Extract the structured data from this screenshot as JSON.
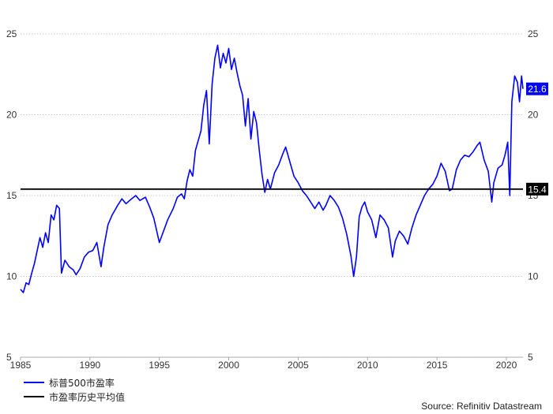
{
  "chart_data": {
    "type": "line",
    "xlim": [
      1985,
      2021.2
    ],
    "ylim": [
      5,
      25
    ],
    "x_ticks": [
      "1985",
      "1990",
      "1995",
      "2000",
      "2005",
      "2010",
      "2015",
      "2020"
    ],
    "y_ticks": [
      "5",
      "10",
      "15",
      "20",
      "25"
    ],
    "grid": true,
    "legend_position": "bottom-left",
    "series": [
      {
        "name": "标普500市盈率",
        "color": "#0000ff",
        "end_label": "21.6",
        "points": [
          [
            1985.0,
            9.2
          ],
          [
            1985.2,
            9.0
          ],
          [
            1985.4,
            9.6
          ],
          [
            1985.6,
            9.5
          ],
          [
            1985.8,
            10.2
          ],
          [
            1986.0,
            10.8
          ],
          [
            1986.2,
            11.6
          ],
          [
            1986.4,
            12.4
          ],
          [
            1986.6,
            11.8
          ],
          [
            1986.8,
            12.7
          ],
          [
            1987.0,
            12.1
          ],
          [
            1987.2,
            13.8
          ],
          [
            1987.4,
            13.5
          ],
          [
            1987.6,
            14.4
          ],
          [
            1987.8,
            14.2
          ],
          [
            1987.95,
            10.2
          ],
          [
            1988.2,
            11.0
          ],
          [
            1988.5,
            10.6
          ],
          [
            1988.8,
            10.4
          ],
          [
            1989.0,
            10.1
          ],
          [
            1989.3,
            10.5
          ],
          [
            1989.6,
            11.2
          ],
          [
            1989.9,
            11.5
          ],
          [
            1990.2,
            11.6
          ],
          [
            1990.5,
            12.1
          ],
          [
            1990.8,
            10.6
          ],
          [
            1991.0,
            11.8
          ],
          [
            1991.3,
            13.2
          ],
          [
            1991.6,
            13.8
          ],
          [
            1992.0,
            14.4
          ],
          [
            1992.3,
            14.8
          ],
          [
            1992.6,
            14.5
          ],
          [
            1993.0,
            14.8
          ],
          [
            1993.3,
            15.0
          ],
          [
            1993.6,
            14.7
          ],
          [
            1994.0,
            14.9
          ],
          [
            1994.3,
            14.3
          ],
          [
            1994.6,
            13.6
          ],
          [
            1995.0,
            12.1
          ],
          [
            1995.3,
            12.8
          ],
          [
            1995.6,
            13.5
          ],
          [
            1996.0,
            14.2
          ],
          [
            1996.3,
            14.9
          ],
          [
            1996.6,
            15.1
          ],
          [
            1996.8,
            14.8
          ],
          [
            1997.0,
            15.9
          ],
          [
            1997.2,
            16.6
          ],
          [
            1997.4,
            16.2
          ],
          [
            1997.6,
            17.8
          ],
          [
            1997.8,
            18.4
          ],
          [
            1998.0,
            19.0
          ],
          [
            1998.2,
            20.6
          ],
          [
            1998.4,
            21.5
          ],
          [
            1998.6,
            18.2
          ],
          [
            1998.8,
            21.9
          ],
          [
            1999.0,
            23.5
          ],
          [
            1999.2,
            24.3
          ],
          [
            1999.4,
            22.9
          ],
          [
            1999.6,
            23.8
          ],
          [
            1999.8,
            23.2
          ],
          [
            2000.0,
            24.1
          ],
          [
            2000.2,
            22.8
          ],
          [
            2000.4,
            23.5
          ],
          [
            2000.6,
            22.6
          ],
          [
            2000.8,
            21.8
          ],
          [
            2001.0,
            21.2
          ],
          [
            2001.2,
            19.3
          ],
          [
            2001.4,
            21.0
          ],
          [
            2001.6,
            18.5
          ],
          [
            2001.8,
            20.2
          ],
          [
            2002.0,
            19.5
          ],
          [
            2002.2,
            17.8
          ],
          [
            2002.4,
            16.3
          ],
          [
            2002.6,
            15.2
          ],
          [
            2002.8,
            16.0
          ],
          [
            2003.0,
            15.4
          ],
          [
            2003.3,
            16.4
          ],
          [
            2003.6,
            16.9
          ],
          [
            2003.9,
            17.6
          ],
          [
            2004.1,
            18.0
          ],
          [
            2004.4,
            17.1
          ],
          [
            2004.7,
            16.2
          ],
          [
            2005.0,
            15.8
          ],
          [
            2005.3,
            15.3
          ],
          [
            2005.6,
            15.0
          ],
          [
            2005.9,
            14.6
          ],
          [
            2006.2,
            14.2
          ],
          [
            2006.5,
            14.6
          ],
          [
            2006.8,
            14.1
          ],
          [
            2007.0,
            14.4
          ],
          [
            2007.3,
            15.0
          ],
          [
            2007.6,
            14.7
          ],
          [
            2007.9,
            14.3
          ],
          [
            2008.2,
            13.6
          ],
          [
            2008.5,
            12.6
          ],
          [
            2008.8,
            11.3
          ],
          [
            2009.0,
            10.0
          ],
          [
            2009.2,
            11.2
          ],
          [
            2009.4,
            13.7
          ],
          [
            2009.6,
            14.3
          ],
          [
            2009.8,
            14.6
          ],
          [
            2010.0,
            14.0
          ],
          [
            2010.3,
            13.5
          ],
          [
            2010.6,
            12.4
          ],
          [
            2010.9,
            13.8
          ],
          [
            2011.2,
            13.5
          ],
          [
            2011.5,
            13.0
          ],
          [
            2011.8,
            11.2
          ],
          [
            2012.0,
            12.2
          ],
          [
            2012.3,
            12.8
          ],
          [
            2012.6,
            12.5
          ],
          [
            2012.9,
            12.0
          ],
          [
            2013.2,
            13.0
          ],
          [
            2013.5,
            13.8
          ],
          [
            2013.8,
            14.4
          ],
          [
            2014.1,
            15.0
          ],
          [
            2014.4,
            15.4
          ],
          [
            2014.7,
            15.7
          ],
          [
            2015.0,
            16.2
          ],
          [
            2015.3,
            17.0
          ],
          [
            2015.6,
            16.5
          ],
          [
            2015.9,
            15.3
          ],
          [
            2016.1,
            15.4
          ],
          [
            2016.4,
            16.6
          ],
          [
            2016.7,
            17.2
          ],
          [
            2017.0,
            17.5
          ],
          [
            2017.3,
            17.4
          ],
          [
            2017.6,
            17.7
          ],
          [
            2017.9,
            18.1
          ],
          [
            2018.1,
            18.3
          ],
          [
            2018.4,
            17.2
          ],
          [
            2018.7,
            16.5
          ],
          [
            2018.95,
            14.6
          ],
          [
            2019.1,
            15.8
          ],
          [
            2019.4,
            16.7
          ],
          [
            2019.7,
            16.9
          ],
          [
            2019.9,
            17.5
          ],
          [
            2020.1,
            18.3
          ],
          [
            2020.25,
            15.0
          ],
          [
            2020.4,
            20.8
          ],
          [
            2020.6,
            22.4
          ],
          [
            2020.8,
            22.0
          ],
          [
            2020.95,
            20.8
          ],
          [
            2021.1,
            22.4
          ],
          [
            2021.2,
            21.6
          ]
        ]
      },
      {
        "name": "市盈率历史平均值",
        "color": "#000000",
        "end_label": "15.4",
        "points": [
          [
            1985.0,
            15.4
          ],
          [
            2021.2,
            15.4
          ]
        ]
      }
    ]
  },
  "source_text": "Source: Refinitiv Datastream"
}
